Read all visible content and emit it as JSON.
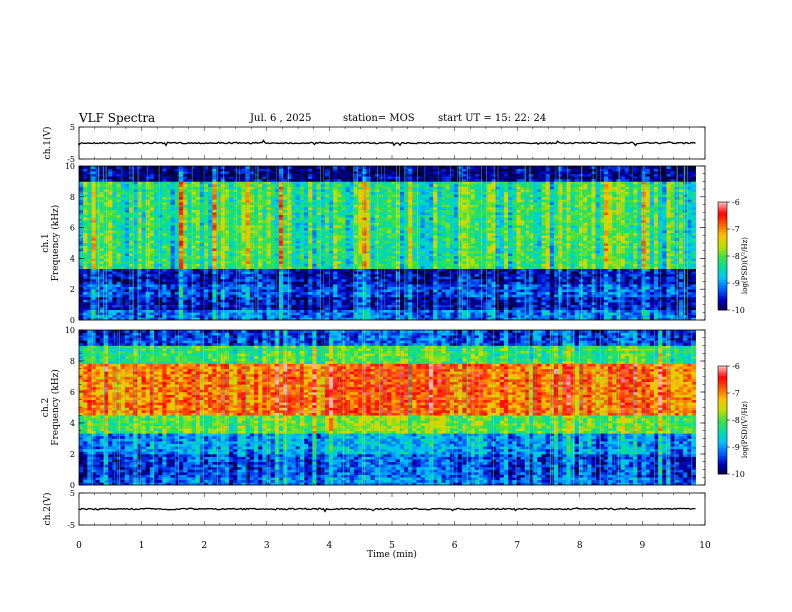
{
  "header": {
    "title": "VLF Spectra",
    "date": "Jul. 6 , 2025",
    "station": "station= MOS",
    "start": "start UT =  15: 22: 24"
  },
  "colors": {
    "colormap": [
      "#000040",
      "#0000c0",
      "#0060ff",
      "#00c0ff",
      "#00e0a0",
      "#40e040",
      "#c0e000",
      "#ffc000",
      "#ff6000",
      "#ff0000",
      "#ffb0b0"
    ]
  },
  "chart_data": [
    {
      "type": "line",
      "ylabel": "ch.1(V)",
      "yticks": [
        "5",
        "-5"
      ],
      "ylim": [
        -5,
        5
      ],
      "xlim": [
        0,
        10
      ],
      "level": 0,
      "grid": false
    },
    {
      "type": "heatmap",
      "ylabel": "ch.1\nFrequency (kHz)",
      "ylabel_lines": [
        "ch.1",
        "Frequency (kHz)"
      ],
      "yticks": [
        "0",
        "2",
        "4",
        "6",
        "8",
        "10"
      ],
      "ylim": [
        0,
        10
      ],
      "xlim": [
        0,
        9.85
      ],
      "colorbar": {
        "label": "log(PSD)(V²/Hz)",
        "ticks": [
          "-6",
          "-7",
          "-8",
          "-9",
          "-10"
        ],
        "range": [
          -10,
          -6
        ]
      },
      "bands": [
        {
          "from": 0,
          "to": 0.7,
          "level": -9.1
        },
        {
          "from": 0.7,
          "to": 1.5,
          "level": -9.6
        },
        {
          "from": 1.5,
          "to": 2.3,
          "level": -9.3
        },
        {
          "from": 2.3,
          "to": 3.3,
          "level": -9.6
        },
        {
          "from": 3.3,
          "to": 9.0,
          "level": -8.2
        },
        {
          "from": 9.0,
          "to": 10,
          "level": -9.8
        }
      ]
    },
    {
      "type": "heatmap",
      "ylabel": "ch.2\nFrequency (kHz)",
      "ylabel_lines": [
        "ch.2",
        "Frequency (kHz)"
      ],
      "yticks": [
        "0",
        "2",
        "4",
        "6",
        "8",
        "10"
      ],
      "ylim": [
        0,
        10
      ],
      "xlim": [
        0,
        9.85
      ],
      "colorbar": {
        "label": "log(PSD)(V²/Hz)",
        "ticks": [
          "-6",
          "-7",
          "-8",
          "-9",
          "-10"
        ],
        "range": [
          -10,
          -6
        ]
      },
      "bands": [
        {
          "from": 0,
          "to": 0.5,
          "level": -9.2
        },
        {
          "from": 0.5,
          "to": 2.0,
          "level": -9.4
        },
        {
          "from": 2.0,
          "to": 3.3,
          "level": -9.0
        },
        {
          "from": 3.3,
          "to": 4.5,
          "level": -8.0
        },
        {
          "from": 4.5,
          "to": 7.8,
          "level": -6.9
        },
        {
          "from": 7.8,
          "to": 9.0,
          "level": -8.2
        },
        {
          "from": 9.0,
          "to": 10,
          "level": -9.4
        }
      ]
    },
    {
      "type": "line",
      "ylabel": "ch.2(V)",
      "yticks": [
        "5",
        "-5"
      ],
      "ylim": [
        -5,
        5
      ],
      "xlim": [
        0,
        10
      ],
      "level": 0,
      "grid": false
    }
  ],
  "xaxis": {
    "label": "Time (min)",
    "ticks": [
      "0",
      "1",
      "2",
      "3",
      "4",
      "5",
      "6",
      "7",
      "8",
      "9",
      "10"
    ],
    "range": [
      0,
      10
    ]
  }
}
